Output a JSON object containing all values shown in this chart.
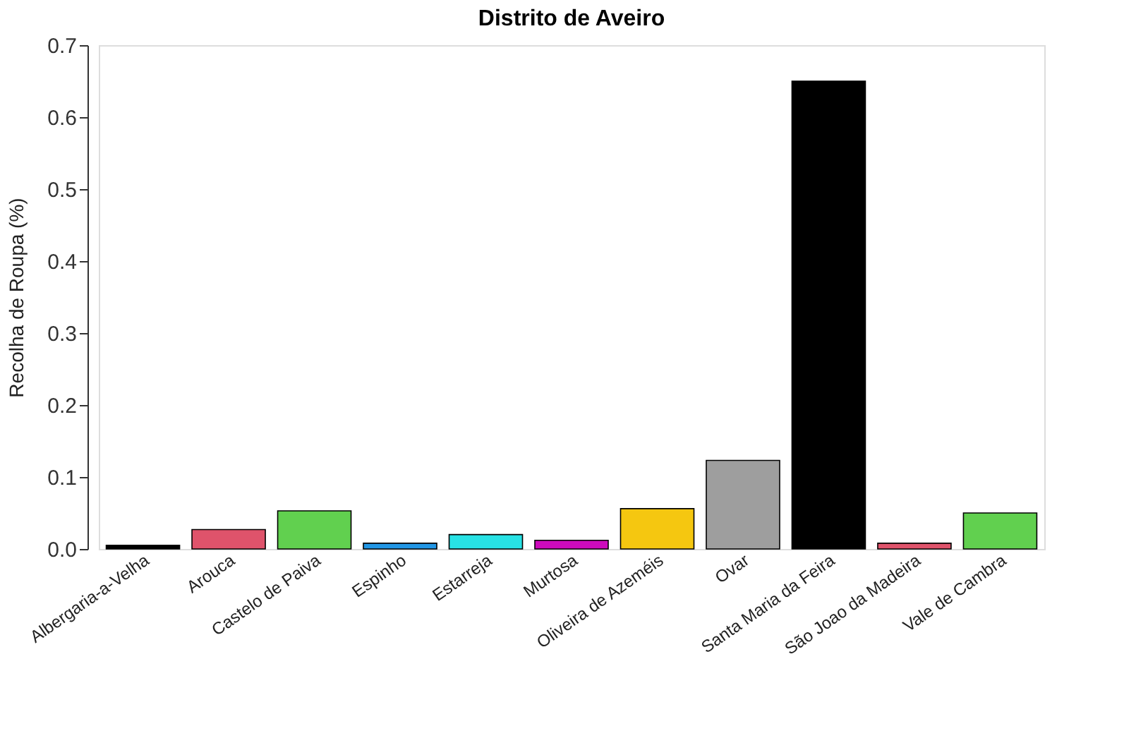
{
  "chart_data": {
    "type": "bar",
    "title": "Distrito de Aveiro",
    "ylabel": "Recolha de Roupa (%)",
    "categories": [
      "Albergaria-a-Velha",
      "Arouca",
      "Castelo de Paiva",
      "Espinho",
      "Estarreja",
      "Murtosa",
      "Oliveira de Azeméis",
      "Ovar",
      "Santa Maria da Feira",
      "São Joao da Madeira",
      "Vale de Cambra"
    ],
    "values": [
      0.005,
      0.027,
      0.053,
      0.008,
      0.02,
      0.012,
      0.056,
      0.123,
      0.65,
      0.008,
      0.05
    ],
    "colors": [
      "#000000",
      "#df536b",
      "#61d04f",
      "#2297e6",
      "#28e2e5",
      "#cd0bbc",
      "#f5c710",
      "#9e9e9e",
      "#000000",
      "#df536b",
      "#61d04f"
    ],
    "ylim": [
      0,
      0.7
    ],
    "yticks": [
      {
        "value": 0,
        "label": "0.0"
      },
      0.1,
      0.2,
      0.3,
      0.4,
      0.5,
      0.6,
      0.7
    ],
    "grid": false
  }
}
